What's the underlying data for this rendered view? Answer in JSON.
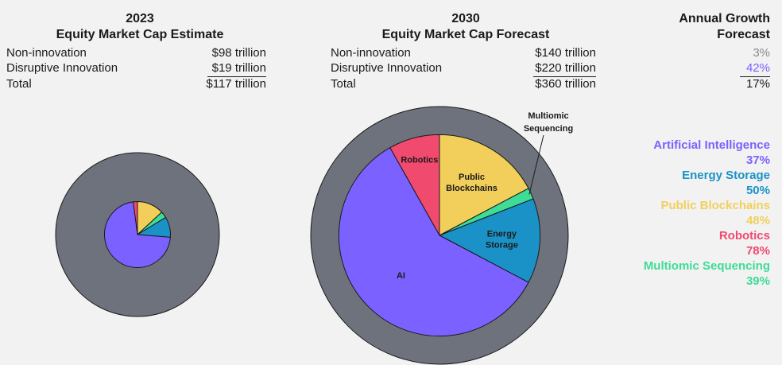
{
  "left_table": {
    "year": "2023",
    "subtitle": "Equity Market Cap Estimate",
    "rows": [
      {
        "label": "Non-innovation",
        "value": "$98 trillion"
      },
      {
        "label": "Disruptive Innovation",
        "value": "$19 trillion"
      },
      {
        "label": "Total",
        "value": "$117 trillion"
      }
    ]
  },
  "mid_table": {
    "year": "2030",
    "subtitle": "Equity Market Cap Forecast",
    "rows": [
      {
        "label": "Non-innovation",
        "value": "$140 trillion"
      },
      {
        "label": "Disruptive Innovation",
        "value": "$220 trillion"
      },
      {
        "label": "Total",
        "value": "$360 trillion"
      }
    ]
  },
  "growth": {
    "title_line1": "Annual Growth",
    "title_line2": "Forecast",
    "values": [
      "3%",
      "42%",
      "17%"
    ],
    "colors": [
      "#8a8a8a",
      "#7b61ff",
      "#1a1a1a"
    ]
  },
  "legend": [
    {
      "name": "Artificial Intelligence",
      "pct": "37%",
      "color": "#7b61ff"
    },
    {
      "name": "Energy Storage",
      "pct": "50%",
      "color": "#1b92c7"
    },
    {
      "name": "Public Blockchains",
      "pct": "48%",
      "color": "#f2cf5b"
    },
    {
      "name": "Robotics",
      "pct": "78%",
      "color": "#f04a6e"
    },
    {
      "name": "Multiomic Sequencing",
      "pct": "39%",
      "color": "#3ddc97"
    }
  ],
  "chart_data": [
    {
      "type": "pie",
      "year": "2023",
      "outer_value": 117,
      "inner_value": 19,
      "outer_color": "#6e727c",
      "slices": [
        {
          "name": "AI",
          "value": 13.6,
          "color": "#7b61ff"
        },
        {
          "name": "Robotics",
          "value": 0.4,
          "color": "#f04a6e"
        },
        {
          "name": "Public Blockchains",
          "value": 2.5,
          "color": "#f2cf5b"
        },
        {
          "name": "Multiomic Sequencing",
          "value": 0.6,
          "color": "#3ddc97"
        },
        {
          "name": "Energy Storage",
          "value": 1.9,
          "color": "#1b92c7"
        }
      ],
      "slice_labels": []
    },
    {
      "type": "pie",
      "year": "2030",
      "outer_value": 360,
      "inner_value": 220,
      "outer_color": "#6e727c",
      "slices": [
        {
          "name": "AI",
          "value": 130,
          "color": "#7b61ff"
        },
        {
          "name": "Robotics",
          "value": 18,
          "color": "#f04a6e"
        },
        {
          "name": "Public Blockchains",
          "value": 38,
          "color": "#f2cf5b"
        },
        {
          "name": "Multiomic Sequencing",
          "value": 4,
          "color": "#3ddc97"
        },
        {
          "name": "Energy Storage",
          "value": 30,
          "color": "#1b92c7"
        }
      ],
      "slice_labels": [
        {
          "name": "AI",
          "lines": [
            "AI"
          ]
        },
        {
          "name": "Robotics",
          "lines": [
            "Robotics"
          ]
        },
        {
          "name": "Public Blockchains",
          "lines": [
            "Public",
            "Blockchains"
          ]
        },
        {
          "name": "Energy Storage",
          "lines": [
            "Energy",
            "Storage"
          ]
        }
      ],
      "callout": {
        "name": "Multiomic Sequencing",
        "lines": [
          "Multiomic",
          "Sequencing"
        ]
      }
    }
  ]
}
